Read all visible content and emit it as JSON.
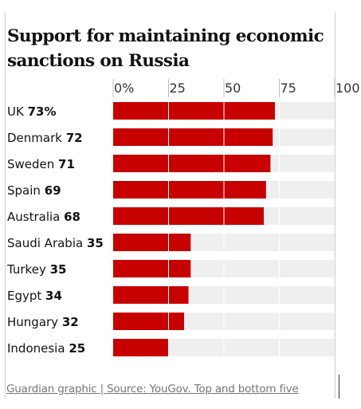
{
  "chart_data": {
    "type": "bar",
    "orientation": "horizontal",
    "title": "Support for maintaining economic sanctions on Russia",
    "categories": [
      "UK",
      "Denmark",
      "Sweden",
      "Spain",
      "Australia",
      "Saudi Arabia",
      "Turkey",
      "Egypt",
      "Hungary",
      "Indonesia"
    ],
    "value_labels": [
      "73%",
      "72",
      "71",
      "69",
      "68",
      "35",
      "35",
      "34",
      "32",
      "25"
    ],
    "values": [
      73,
      72,
      71,
      69,
      68,
      35,
      35,
      34,
      32,
      25
    ],
    "xlim": [
      0,
      100
    ],
    "tick_labels": [
      "0%",
      "25",
      "50",
      "75",
      "100"
    ],
    "tick_values": [
      0,
      25,
      50,
      75,
      100
    ],
    "grid": true,
    "colors": {
      "bar": "#c70000",
      "track": "#efefef",
      "grid": "#ffffff"
    }
  },
  "footer": {
    "source": "Guardian graphic | Source: YouGov. Top and bottom five"
  }
}
